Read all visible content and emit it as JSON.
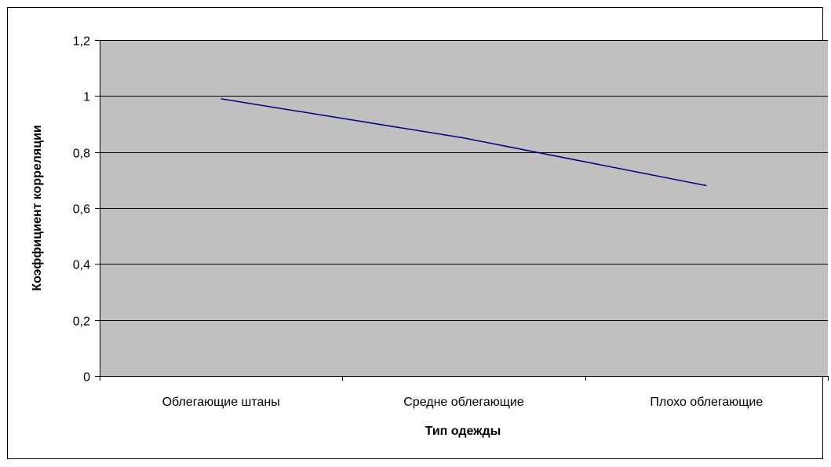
{
  "chart_data": {
    "type": "line",
    "categories": [
      "Облегающие штаны",
      "Средне облегающие",
      "Плохо облегающие"
    ],
    "series": [
      {
        "values": [
          0.99,
          0.85,
          0.68
        ],
        "color": "#000080"
      }
    ],
    "ylim": [
      0,
      1.2
    ],
    "yticks": [
      0,
      0.2,
      0.4,
      0.6,
      0.8,
      1,
      1.2
    ],
    "ytick_labels": [
      "0",
      "0,2",
      "0,4",
      "0,6",
      "0,8",
      "1",
      "1,2"
    ],
    "xlabel": "Тип одежды",
    "ylabel": "Коэффициент корреляции",
    "grid": true,
    "legend": "none",
    "colors": {
      "plot_background": "#c0c0c0",
      "gridline": "#000000",
      "chart_border": "#000000",
      "line": "#000080"
    }
  }
}
